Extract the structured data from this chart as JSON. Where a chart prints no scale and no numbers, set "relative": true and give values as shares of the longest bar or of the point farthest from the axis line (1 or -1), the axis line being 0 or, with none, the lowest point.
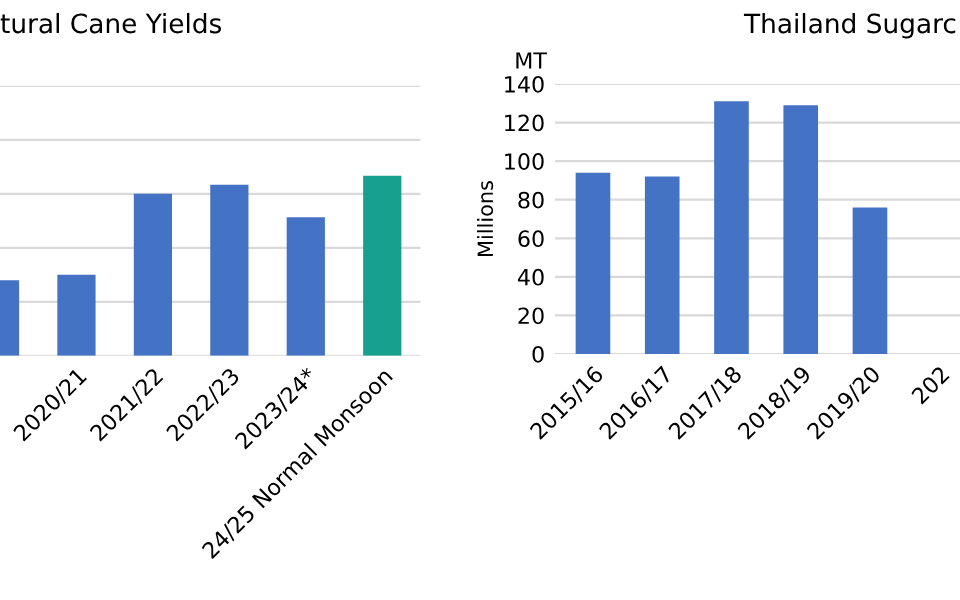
{
  "chart_data": [
    {
      "type": "bar",
      "title": "tural Cane Yields",
      "relative": true,
      "grid": "y",
      "categories": [
        null,
        "2020/21",
        "2021/22",
        "2022/23",
        "2023/24*",
        "24/25 Normal Monsoon"
      ],
      "values": [
        0.42,
        0.45,
        0.9,
        0.95,
        0.77,
        1.0
      ],
      "colors": [
        "#4472c4",
        "#4472c4",
        "#4472c4",
        "#4472c4",
        "#4472c4",
        "#17a08e"
      ]
    },
    {
      "type": "bar",
      "title": "Thailand Sugarc",
      "ylabel": "Millions",
      "annotations": [
        "MT"
      ],
      "grid": "y",
      "categories": [
        "2015/16",
        "2016/17",
        "2017/18",
        "2018/19",
        "2019/20",
        "202"
      ],
      "values": [
        94,
        92,
        131,
        129,
        76,
        null
      ],
      "color": "#4472c4",
      "ylim": [
        0,
        140
      ],
      "yticks": [
        0,
        20,
        40,
        60,
        80,
        100,
        120,
        140
      ]
    }
  ]
}
